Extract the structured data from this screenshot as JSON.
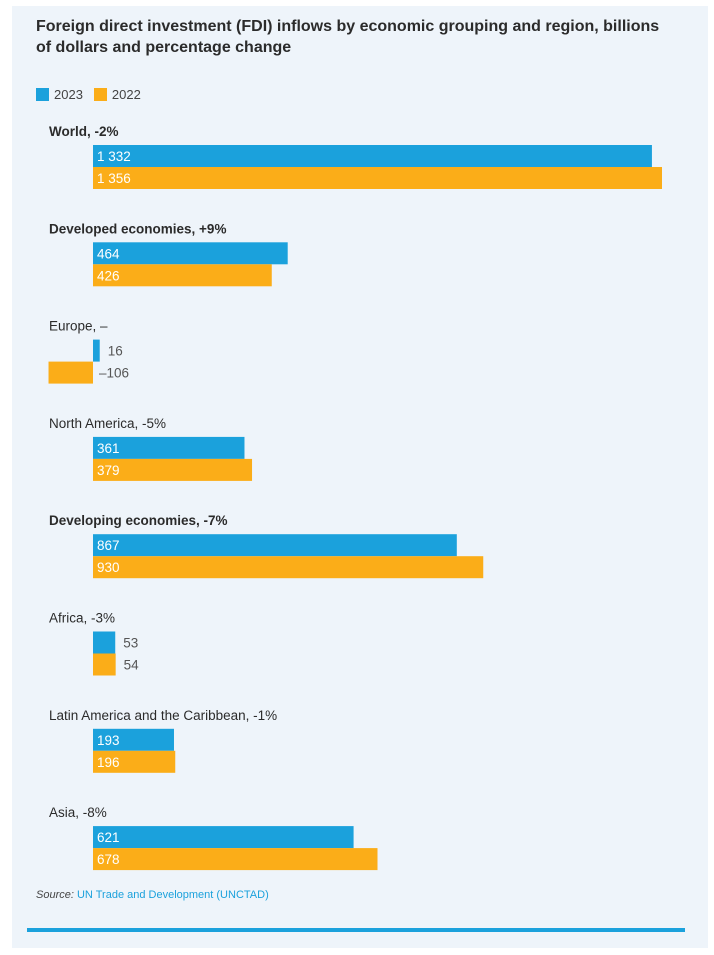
{
  "title": "Foreign direct investment (FDI) inflows by economic grouping and region, billions of dollars and percentage change",
  "colors": {
    "y2023": "#1ba1dc",
    "y2022": "#fbad18",
    "background": "#eef4fa",
    "text": "#2b2b2b"
  },
  "source": {
    "label": "Source:",
    "text": "UN Trade and Development (UNCTAD)"
  },
  "chart_data": {
    "type": "bar",
    "orientation": "horizontal",
    "title": "Foreign direct investment (FDI) inflows by economic grouping and region, billions of dollars and percentage change",
    "legend_position": "top-left",
    "grid": false,
    "xlim": [
      -106,
      1356
    ],
    "series": [
      {
        "name": "2023",
        "color": "#1ba1dc"
      },
      {
        "name": "2022",
        "color": "#fbad18"
      }
    ],
    "groups": [
      {
        "label": "World, -2%",
        "bold": true,
        "values": [
          1332,
          1356
        ],
        "value_labels": [
          "1 332",
          "1 356"
        ]
      },
      {
        "label": "Developed economies, +9%",
        "bold": true,
        "values": [
          464,
          426
        ],
        "value_labels": [
          "464",
          "426"
        ]
      },
      {
        "label": "Europe, –",
        "bold": false,
        "values": [
          16,
          -106
        ],
        "value_labels": [
          "16",
          "–106"
        ]
      },
      {
        "label": "North America, -5%",
        "bold": false,
        "values": [
          361,
          379
        ],
        "value_labels": [
          "361",
          "379"
        ]
      },
      {
        "label": "Developing economies, -7%",
        "bold": true,
        "values": [
          867,
          930
        ],
        "value_labels": [
          "867",
          "930"
        ]
      },
      {
        "label": "Africa, -3%",
        "bold": false,
        "values": [
          53,
          54
        ],
        "value_labels": [
          "53",
          "54"
        ]
      },
      {
        "label": "Latin America and the Caribbean, -1%",
        "bold": false,
        "values": [
          193,
          196
        ],
        "value_labels": [
          "193",
          "196"
        ]
      },
      {
        "label": "Asia, -8%",
        "bold": false,
        "values": [
          621,
          678
        ],
        "value_labels": [
          "621",
          "678"
        ]
      }
    ]
  }
}
